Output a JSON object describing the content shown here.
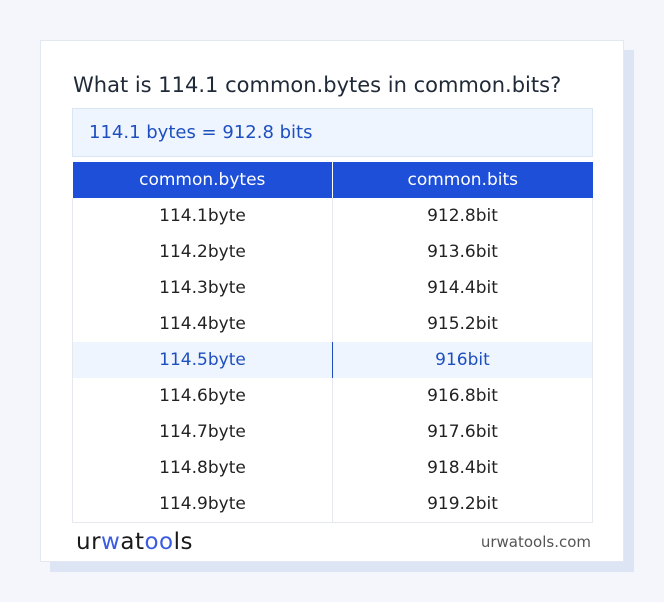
{
  "title": "What is 114.1 common.bytes in common.bits?",
  "result": "114.1 bytes = 912.8 bits",
  "table": {
    "headers": [
      "common.bytes",
      "common.bits"
    ],
    "rows": [
      [
        "114.1byte",
        "912.8bit"
      ],
      [
        "114.2byte",
        "913.6bit"
      ],
      [
        "114.3byte",
        "914.4bit"
      ],
      [
        "114.4byte",
        "915.2bit"
      ],
      [
        "114.5byte",
        "916bit"
      ],
      [
        "114.6byte",
        "916.8bit"
      ],
      [
        "114.7byte",
        "917.6bit"
      ],
      [
        "114.8byte",
        "918.4bit"
      ],
      [
        "114.9byte",
        "919.2bit"
      ]
    ],
    "highlighted_row": 4
  },
  "footer": {
    "logo": "urwatools",
    "site": "urwatools.com"
  },
  "colors": {
    "accent": "#1d4fd8",
    "highlight_bg": "#eef5fe",
    "highlight_text": "#1e4fbf"
  }
}
